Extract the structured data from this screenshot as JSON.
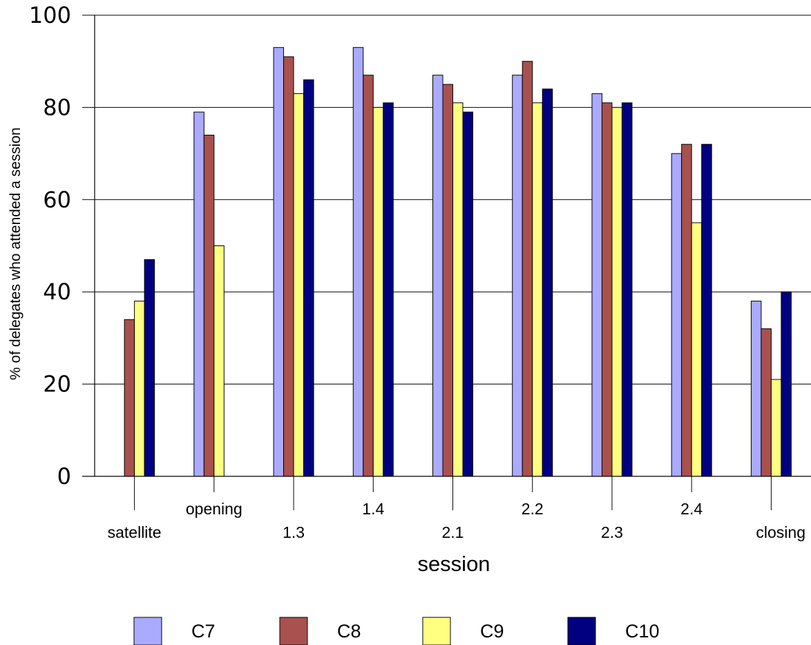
{
  "chart_data": {
    "type": "bar",
    "title": "",
    "xlabel": "session",
    "ylabel": "% of delegates who attended a session",
    "ylim": [
      0,
      100
    ],
    "yticks": [
      0,
      20,
      40,
      60,
      80,
      100
    ],
    "grid": true,
    "legend_position": "bottom",
    "categories": [
      "satellite",
      "opening",
      "1.3",
      "1.4",
      "2.1",
      "2.2",
      "2.3",
      "2.4",
      "closing"
    ],
    "series": [
      {
        "name": "C7",
        "color": "#aaaaff",
        "values": [
          null,
          79,
          93,
          93,
          87,
          87,
          83,
          70,
          38
        ]
      },
      {
        "name": "C8",
        "color": "#a8514f",
        "values": [
          34,
          74,
          91,
          87,
          85,
          90,
          81,
          72,
          32
        ]
      },
      {
        "name": "C9",
        "color": "#ffff80",
        "values": [
          38,
          50,
          83,
          80,
          81,
          81,
          80,
          55,
          21
        ]
      },
      {
        "name": "C10",
        "color": "#000080",
        "values": [
          47,
          null,
          86,
          81,
          79,
          84,
          81,
          72,
          40
        ]
      }
    ]
  }
}
